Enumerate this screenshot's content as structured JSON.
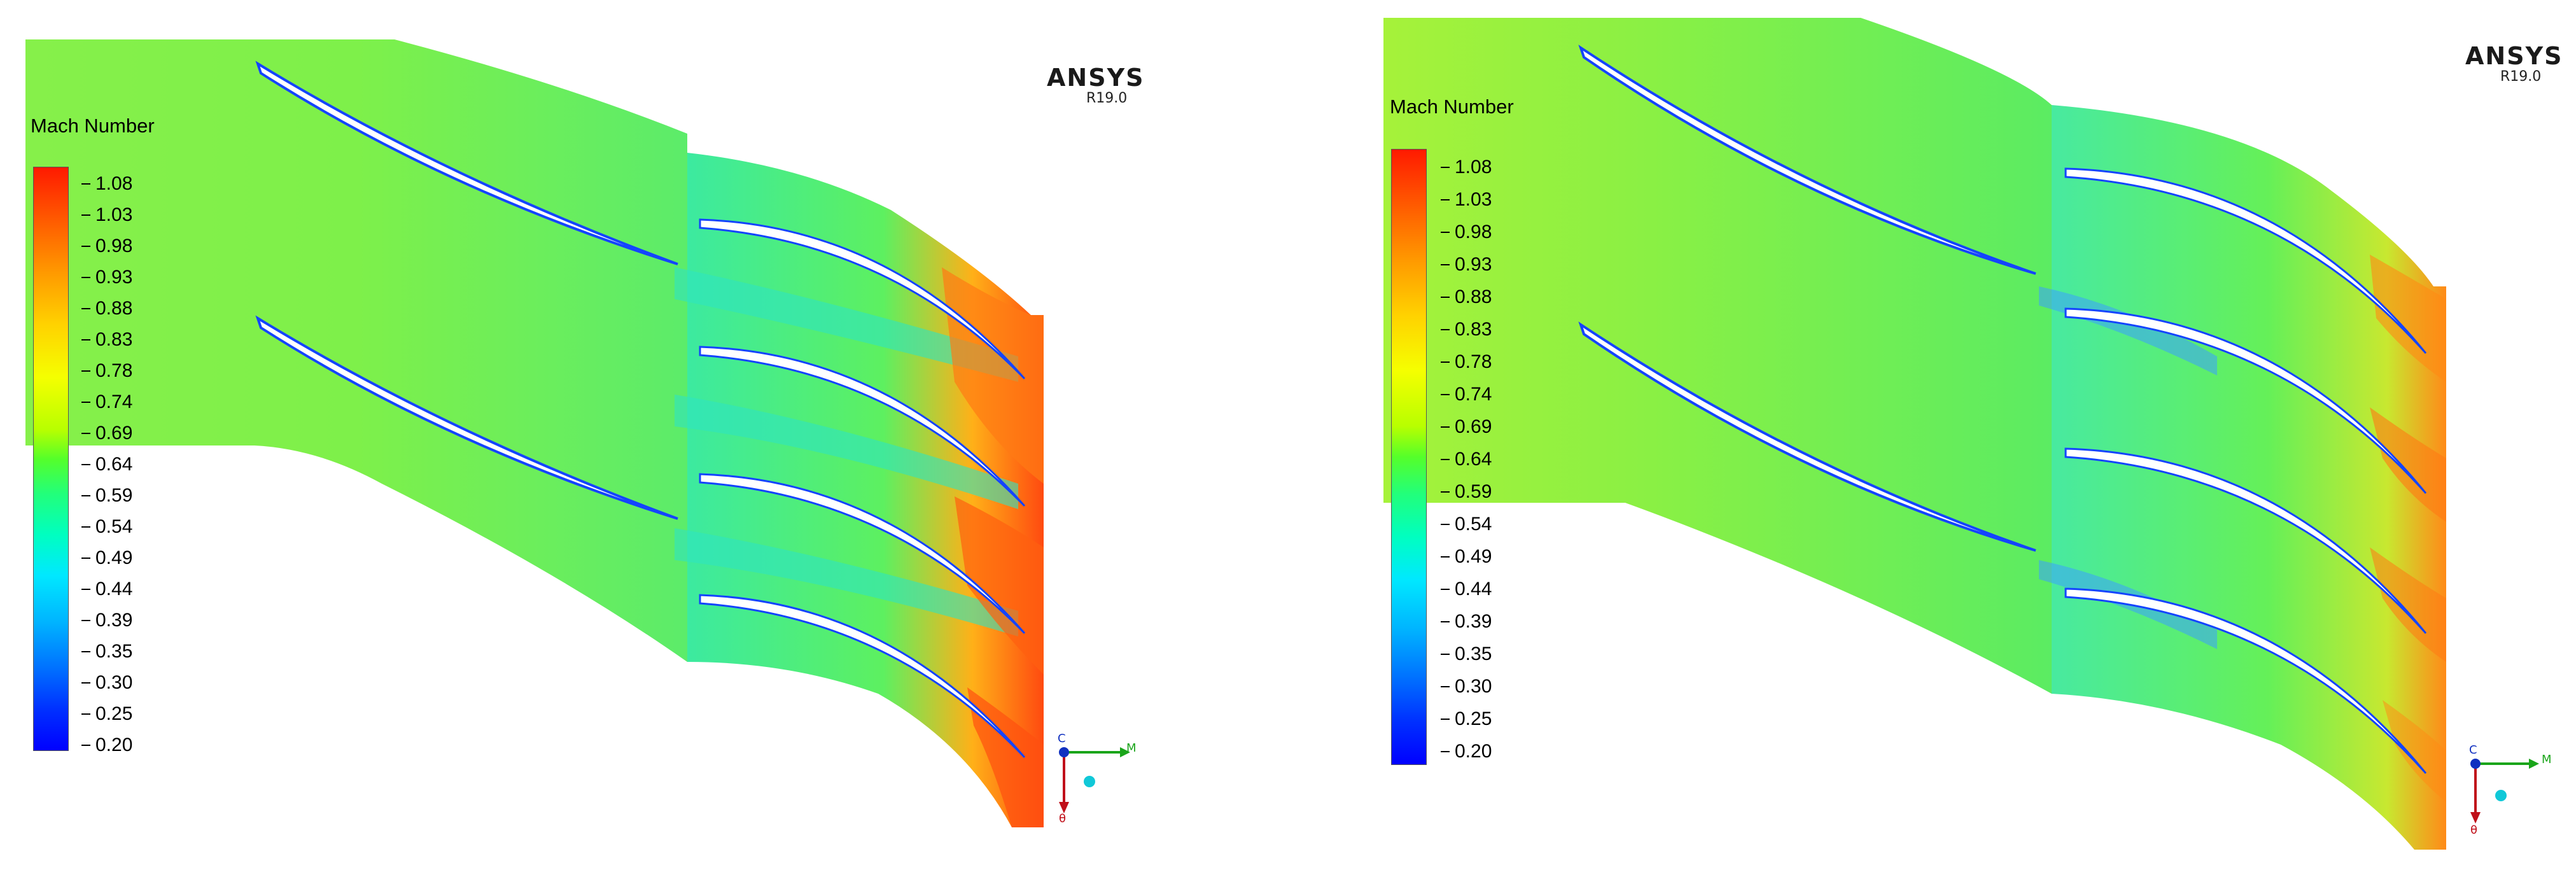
{
  "panels": [
    {
      "id": "left",
      "brand": "ANSYS",
      "version": "R19.0",
      "legend": {
        "title": "Mach Number",
        "ticks": [
          "1.08",
          "1.03",
          "0.98",
          "0.93",
          "0.88",
          "0.83",
          "0.78",
          "0.74",
          "0.69",
          "0.64",
          "0.59",
          "0.54",
          "0.49",
          "0.44",
          "0.39",
          "0.35",
          "0.30",
          "0.25",
          "0.20"
        ]
      },
      "triad": {
        "x": "M",
        "y": "θ",
        "z": "C"
      }
    },
    {
      "id": "right",
      "brand": "ANSYS",
      "version": "R19.0",
      "legend": {
        "title": "Mach Number",
        "ticks": [
          "1.08",
          "1.03",
          "0.98",
          "0.93",
          "0.88",
          "0.83",
          "0.78",
          "0.74",
          "0.69",
          "0.64",
          "0.59",
          "0.54",
          "0.49",
          "0.44",
          "0.39",
          "0.35",
          "0.30",
          "0.25",
          "0.20"
        ]
      },
      "triad": {
        "x": "M",
        "y": "θ",
        "z": "C"
      }
    }
  ],
  "colors": {
    "stator_field": "#7df04a",
    "rotor_field": "#45ea78",
    "high_mach": "#ff3a12",
    "low_mach": "#1a7dff",
    "blade": "#ffffff"
  }
}
